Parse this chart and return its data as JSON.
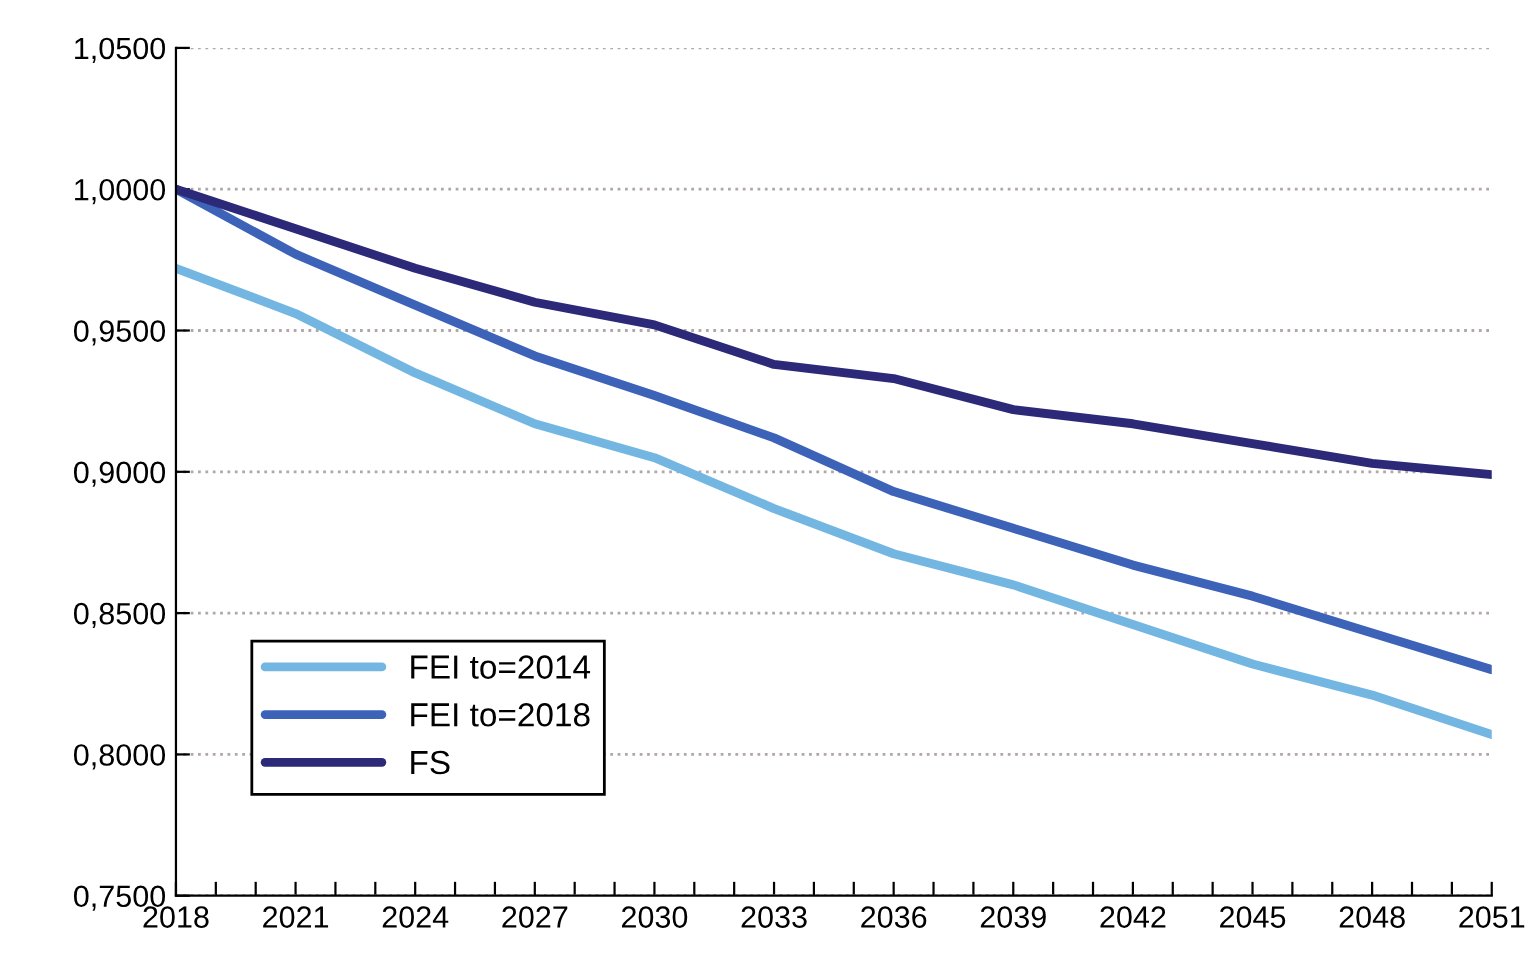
{
  "chart_data": {
    "type": "line",
    "x": [
      2018,
      2021,
      2024,
      2027,
      2030,
      2033,
      2036,
      2039,
      2042,
      2045,
      2048,
      2051
    ],
    "series": [
      {
        "name": "FEI to=2014",
        "color": "#74b6e2",
        "values": [
          0.972,
          0.956,
          0.935,
          0.917,
          0.905,
          0.887,
          0.871,
          0.86,
          0.846,
          0.832,
          0.821,
          0.807
        ]
      },
      {
        "name": "FEI to=2018",
        "color": "#3c63b8",
        "values": [
          1.0,
          0.977,
          0.959,
          0.941,
          0.927,
          0.912,
          0.893,
          0.88,
          0.867,
          0.856,
          0.843,
          0.83
        ]
      },
      {
        "name": "FS",
        "color": "#2c2a78",
        "values": [
          1.0,
          0.986,
          0.972,
          0.96,
          0.952,
          0.938,
          0.933,
          0.922,
          0.917,
          0.91,
          0.903,
          0.899
        ]
      }
    ],
    "xlim": [
      2018,
      2051
    ],
    "xticks": [
      2018,
      {
        "value": 2019,
        "label": null
      },
      {
        "value": 2020,
        "label": null
      },
      2021,
      {
        "value": 2022,
        "label": null
      },
      {
        "value": 2023,
        "label": null
      },
      2024,
      {
        "value": 2025,
        "label": null
      },
      {
        "value": 2026,
        "label": null
      },
      2027,
      {
        "value": 2028,
        "label": null
      },
      {
        "value": 2029,
        "label": null
      },
      2030,
      {
        "value": 2031,
        "label": null
      },
      {
        "value": 2032,
        "label": null
      },
      2033,
      {
        "value": 2034,
        "label": null
      },
      {
        "value": 2035,
        "label": null
      },
      2036,
      {
        "value": 2037,
        "label": null
      },
      {
        "value": 2038,
        "label": null
      },
      2039,
      {
        "value": 2040,
        "label": null
      },
      {
        "value": 2041,
        "label": null
      },
      2042,
      {
        "value": 2043,
        "label": null
      },
      {
        "value": 2044,
        "label": null
      },
      2045,
      {
        "value": 2046,
        "label": null
      },
      {
        "value": 2047,
        "label": null
      },
      2048,
      {
        "value": 2049,
        "label": null
      },
      {
        "value": 2050,
        "label": null
      },
      2051
    ],
    "ylim": [
      0.75,
      1.05
    ],
    "yticks": [
      {
        "value": 0.75,
        "label": "0,7500"
      },
      {
        "value": 0.8,
        "label": "0,8000"
      },
      {
        "value": 0.85,
        "label": "0,8500"
      },
      {
        "value": 0.9,
        "label": "0,9000"
      },
      {
        "value": 0.95,
        "label": "0,9500"
      },
      {
        "value": 1.0,
        "label": "1,0000"
      },
      {
        "value": 1.05,
        "label": "1,0500"
      }
    ],
    "grid": "y",
    "legend": "bottom left",
    "marker": "none",
    "line_style": "solid"
  }
}
